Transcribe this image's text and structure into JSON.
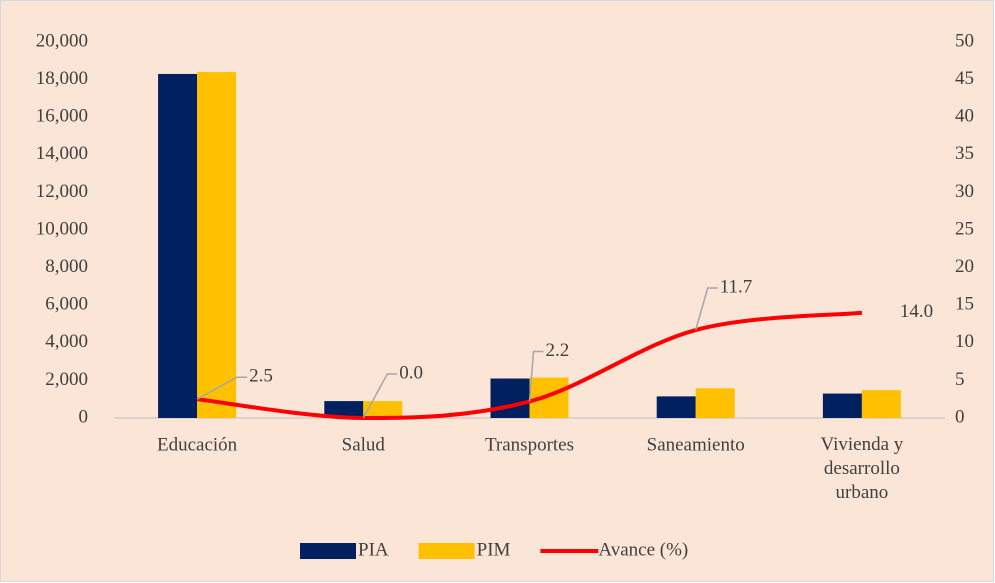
{
  "chart_data": {
    "type": "bar_line",
    "categories": [
      "Educación",
      "Salud",
      "Transportes",
      "Saneamiento",
      "Vivienda y desarrollo urbano"
    ],
    "series": [
      {
        "name": "PIA",
        "color": "#002060",
        "values": [
          18300,
          900,
          2100,
          1150,
          1300
        ]
      },
      {
        "name": "PIM",
        "color": "#FFC000",
        "values": [
          18400,
          900,
          2150,
          1580,
          1480
        ]
      },
      {
        "name": "Avance (%)",
        "color": "#FF0000",
        "axis": "y2",
        "type": "line",
        "values": [
          2.5,
          0.0,
          2.2,
          11.7,
          14.0
        ],
        "value_labels": [
          "2.5",
          "0.0",
          "2.2",
          "11.7",
          "14.0"
        ]
      }
    ],
    "ylim": [
      0,
      20000
    ],
    "yticks": [
      0,
      {
        "value": 2000,
        "label": "2,000"
      },
      {
        "value": 4000,
        "label": "4,000"
      },
      {
        "value": 6000,
        "label": "6,000"
      },
      {
        "value": 8000,
        "label": "8,000"
      },
      {
        "value": 10000,
        "label": "10,000"
      },
      {
        "value": 12000,
        "label": "12,000"
      },
      {
        "value": 14000,
        "label": "14,000"
      },
      {
        "value": 16000,
        "label": "16,000"
      },
      {
        "value": 18000,
        "label": "18,000"
      },
      {
        "value": 20000,
        "label": "20,000"
      }
    ],
    "y2lim": [
      0,
      50
    ],
    "y2ticks": [
      0,
      5,
      10,
      15,
      20,
      25,
      30,
      35,
      40,
      45,
      50
    ],
    "grid": false,
    "legend": "bottom"
  }
}
